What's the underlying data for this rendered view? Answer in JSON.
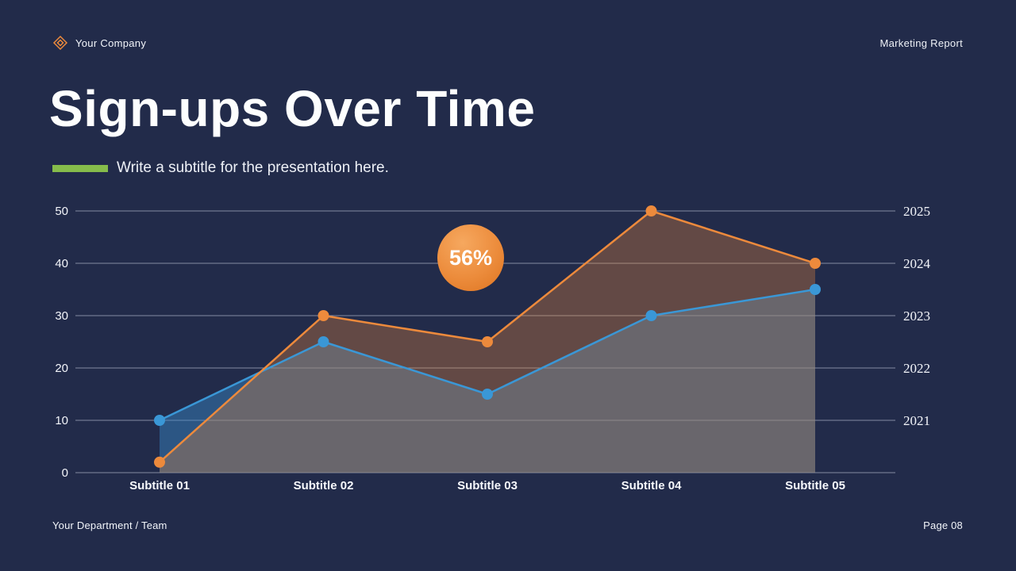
{
  "header": {
    "company": "Your Company",
    "report": "Marketing Report"
  },
  "title": "Sign-ups Over Time",
  "subtitle": "Write a subtitle for the presentation here.",
  "footer": {
    "left": "Your Department / Team",
    "right": "Page 08"
  },
  "colors": {
    "background": "#222b4a",
    "accent_green": "#86bc4b",
    "orange": "#ed8a3c",
    "blue": "#3a97d6"
  },
  "chart_data": {
    "type": "line",
    "title": "Sign-ups Over Time",
    "categories": [
      "Subtitle 01",
      "Subtitle 02",
      "Subtitle 03",
      "Subtitle 04",
      "Subtitle 05"
    ],
    "series": [
      {
        "name": "orange",
        "color": "#ed8a3c",
        "fill": "rgba(237,138,60,0.32)",
        "values": [
          2,
          30,
          25,
          50,
          40
        ]
      },
      {
        "name": "blue",
        "color": "#3a97d6",
        "fill": "rgba(58,140,205,0.45)",
        "values": [
          10,
          25,
          15,
          30,
          35
        ]
      }
    ],
    "y_ticks": [
      0,
      10,
      20,
      30,
      40,
      50
    ],
    "right_axis_labels": [
      "2021",
      "2022",
      "2023",
      "2024",
      "2025"
    ],
    "ylim": [
      0,
      50
    ],
    "grid": true,
    "legend": "none",
    "annotation": "56%"
  }
}
